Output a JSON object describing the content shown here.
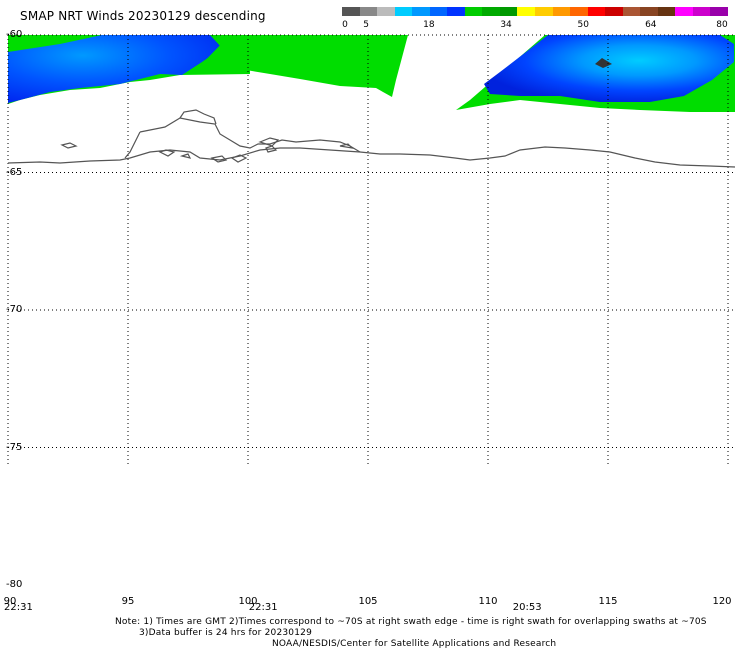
{
  "title": "SMAP NRT Winds  20230129 descending",
  "colorbar": {
    "ticks": [
      {
        "label": "0",
        "value": 0
      },
      {
        "label": "5",
        "value": 5
      },
      {
        "label": "18",
        "value": 18
      },
      {
        "label": "34",
        "value": 34
      },
      {
        "label": "50",
        "value": 50
      },
      {
        "label": "64",
        "value": 64
      },
      {
        "label": "80",
        "value": 80
      }
    ],
    "colors": [
      "#555555",
      "#888888",
      "#bbbbbb",
      "#00ccff",
      "#0099ff",
      "#0066ff",
      "#0033ff",
      "#00cc00",
      "#00aa00",
      "#009900",
      "#ffff00",
      "#ffcc00",
      "#ff9900",
      "#ff6600",
      "#ff0000",
      "#cc0000",
      "#aa5533",
      "#884422",
      "#663311",
      "#ff00ff",
      "#cc00cc",
      "#9900aa"
    ]
  },
  "map": {
    "lat_labels": [
      {
        "label": "-60",
        "lat": -60
      },
      {
        "label": "-65",
        "lat": -65
      },
      {
        "label": "-70",
        "lat": -70
      },
      {
        "label": "-75",
        "lat": -75
      },
      {
        "label": "-80",
        "lat": -80
      }
    ],
    "lon_labels": [
      {
        "label": "90",
        "lon": 90
      },
      {
        "label": "95",
        "lon": 95
      },
      {
        "label": "100",
        "lon": 100
      },
      {
        "label": "105",
        "lon": 105
      },
      {
        "label": "110",
        "lon": 110
      },
      {
        "label": "115",
        "lon": 115
      },
      {
        "label": "120",
        "lon": 120
      }
    ],
    "swath_times": [
      {
        "label": "22:31",
        "lon": 90
      },
      {
        "label": "22:31",
        "lon": 100.2
      },
      {
        "label": "20:53",
        "lon": 111.2
      }
    ],
    "land_color": "#555555",
    "grid_color": "#000000"
  },
  "notes": {
    "line1": "Note: 1) Times are GMT 2)Times correspond to ~70S at right swath edge - time is right swath for overlapping swaths at ~70S",
    "line2": "3)Data buffer is 24 hrs for 20230129",
    "line3": "NOAA/NESDIS/Center for Satellite Applications and Research"
  }
}
